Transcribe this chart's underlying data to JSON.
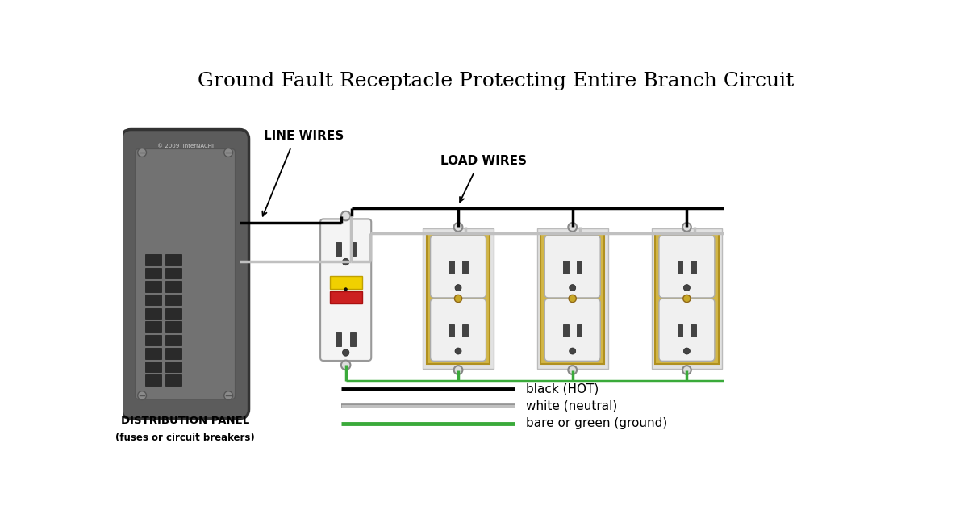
{
  "title": "Ground Fault Receptacle Protecting Entire Branch Circuit",
  "title_fontsize": 18,
  "bg_color": "#ffffff",
  "wire_black": "#000000",
  "wire_white": "#c0c0c0",
  "wire_green": "#3aaa3a",
  "label_line_wires": "LINE WIRES",
  "label_load_wires": "LOAD WIRES",
  "label_panel": "DISTRIBUTION PANEL",
  "label_panel2": "(fuses or circuit breakers)",
  "legend_items": [
    {
      "color": "#000000",
      "label": "black (HOT)"
    },
    {
      "color": "#c0c0c0",
      "label": "white (neutral)"
    },
    {
      "color": "#3aaa3a",
      "label": "bare or green (ground)"
    }
  ],
  "copyright_text": "© 2009  InterNACHI"
}
